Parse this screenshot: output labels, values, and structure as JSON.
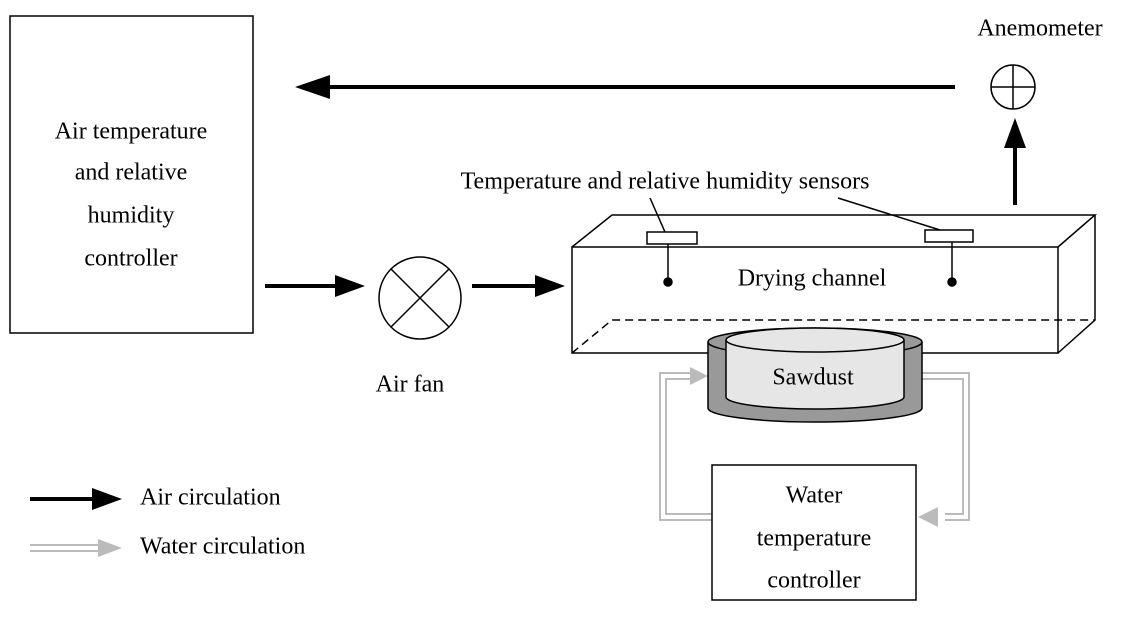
{
  "nodes": {
    "climate_controller": {
      "lines": [
        "Air temperature",
        "and relative",
        "humidity",
        "controller"
      ]
    },
    "anemometer": {
      "label": "Anemometer"
    },
    "air_fan": {
      "label": "Air fan"
    },
    "sensors": {
      "label": "Temperature and relative humidity sensors"
    },
    "drying_channel": {
      "label": "Drying channel"
    },
    "sawdust": {
      "label": "Sawdust"
    },
    "water_controller": {
      "lines": [
        "Water",
        "temperature",
        "controller"
      ]
    }
  },
  "legend": {
    "items": [
      "Air circulation",
      "Water circulation"
    ]
  }
}
